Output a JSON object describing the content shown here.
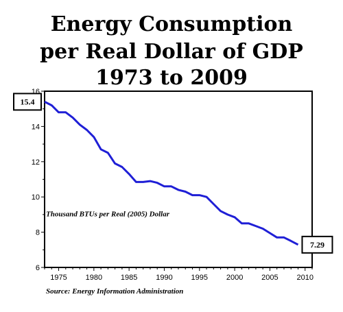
{
  "chart_data": {
    "type": "line",
    "title_lines": [
      "Energy Consumption",
      "per Real Dollar of GDP",
      "1973 to 2009"
    ],
    "ylabel": "Thousand BTUs per Real (2005) Dollar",
    "source": "Source: Energy Information Administration",
    "xlim": [
      1973,
      2011
    ],
    "ylim": [
      6,
      16
    ],
    "x_ticks": [
      1975,
      1980,
      1985,
      1990,
      1995,
      2000,
      2005,
      2010
    ],
    "y_ticks": [
      6,
      8,
      10,
      12,
      14,
      16
    ],
    "grid": false,
    "series_color": "#1f1fd6",
    "series": [
      {
        "x": [
          1973,
          1974,
          1975,
          1976,
          1977,
          1978,
          1979,
          1980,
          1981,
          1982,
          1983,
          1984,
          1985,
          1986,
          1987,
          1988,
          1989,
          1990,
          1991,
          1992,
          1993,
          1994,
          1995,
          1996,
          1997,
          1998,
          1999,
          2000,
          2001,
          2002,
          2003,
          2004,
          2005,
          2006,
          2007,
          2008,
          2009
        ],
        "values": [
          15.4,
          15.2,
          14.8,
          14.8,
          14.5,
          14.1,
          13.8,
          13.4,
          12.7,
          12.5,
          11.9,
          11.7,
          11.3,
          10.85,
          10.85,
          10.9,
          10.8,
          10.6,
          10.6,
          10.4,
          10.3,
          10.1,
          10.1,
          10.0,
          9.6,
          9.2,
          9.0,
          8.85,
          8.5,
          8.5,
          8.35,
          8.2,
          7.95,
          7.7,
          7.7,
          7.5,
          7.29
        ]
      }
    ],
    "annotations": [
      {
        "label": "15.4",
        "x": 1973,
        "y": 15.4
      },
      {
        "label": "7.29",
        "x": 2009,
        "y": 7.29
      }
    ]
  }
}
